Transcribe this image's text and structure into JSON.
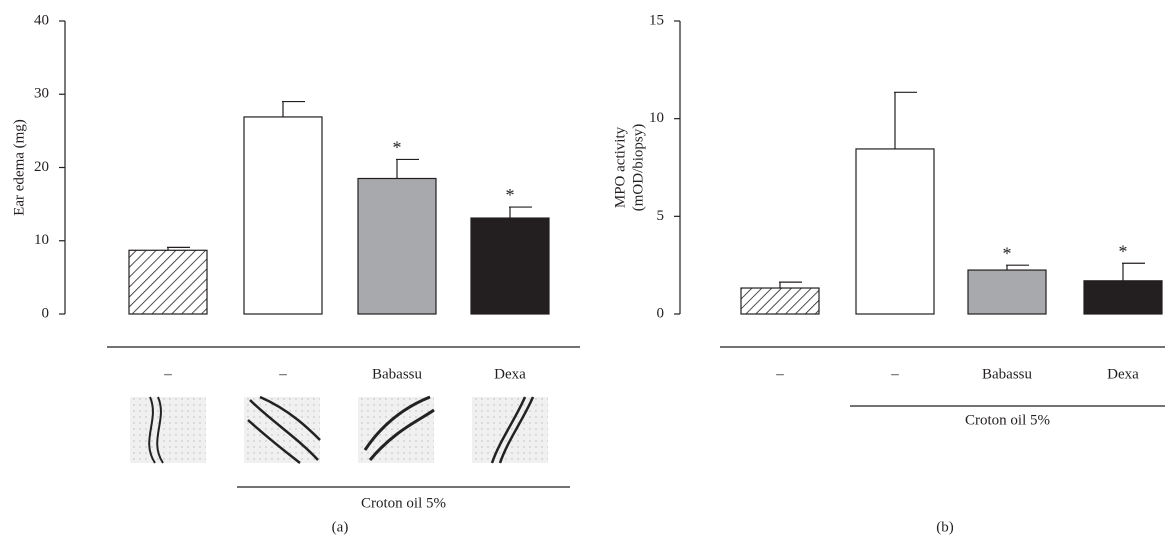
{
  "chart_data": [
    {
      "type": "bar",
      "panel_label": "(a)",
      "ylabel": [
        "Ear edema (mg)"
      ],
      "categories": [
        "–",
        "–",
        "Babassu",
        "Dexa"
      ],
      "values": [
        8.7,
        26.9,
        18.5,
        13.1
      ],
      "errors": [
        0.4,
        2.1,
        2.6,
        1.5
      ],
      "colors": [
        "#ffffff",
        "#ffffff",
        "#a7a9ac",
        "#231f20"
      ],
      "hatch": [
        true,
        false,
        false,
        false
      ],
      "annotations": [
        {
          "category": 2,
          "text": "*"
        },
        {
          "category": 3,
          "text": "*"
        }
      ],
      "group_label": "Croton oil 5%",
      "ylim": [
        0,
        40
      ],
      "yticks": [
        0,
        10,
        20,
        30,
        40
      ]
    },
    {
      "type": "bar",
      "panel_label": "(b)",
      "ylabel": [
        "MPO activity",
        "(mOD/biopsy)"
      ],
      "categories": [
        "–",
        "–",
        "Babassu",
        "Dexa"
      ],
      "values": [
        1.33,
        8.45,
        2.25,
        1.7
      ],
      "errors": [
        0.3,
        2.9,
        0.25,
        0.9
      ],
      "colors": [
        "#ffffff",
        "#ffffff",
        "#a7a9ac",
        "#231f20"
      ],
      "hatch": [
        true,
        false,
        false,
        false
      ],
      "annotations": [
        {
          "category": 2,
          "text": "*"
        },
        {
          "category": 3,
          "text": "*"
        }
      ],
      "group_label": "Croton oil 5%",
      "ylim": [
        0,
        15
      ],
      "yticks": [
        0,
        5,
        10,
        15
      ]
    }
  ]
}
